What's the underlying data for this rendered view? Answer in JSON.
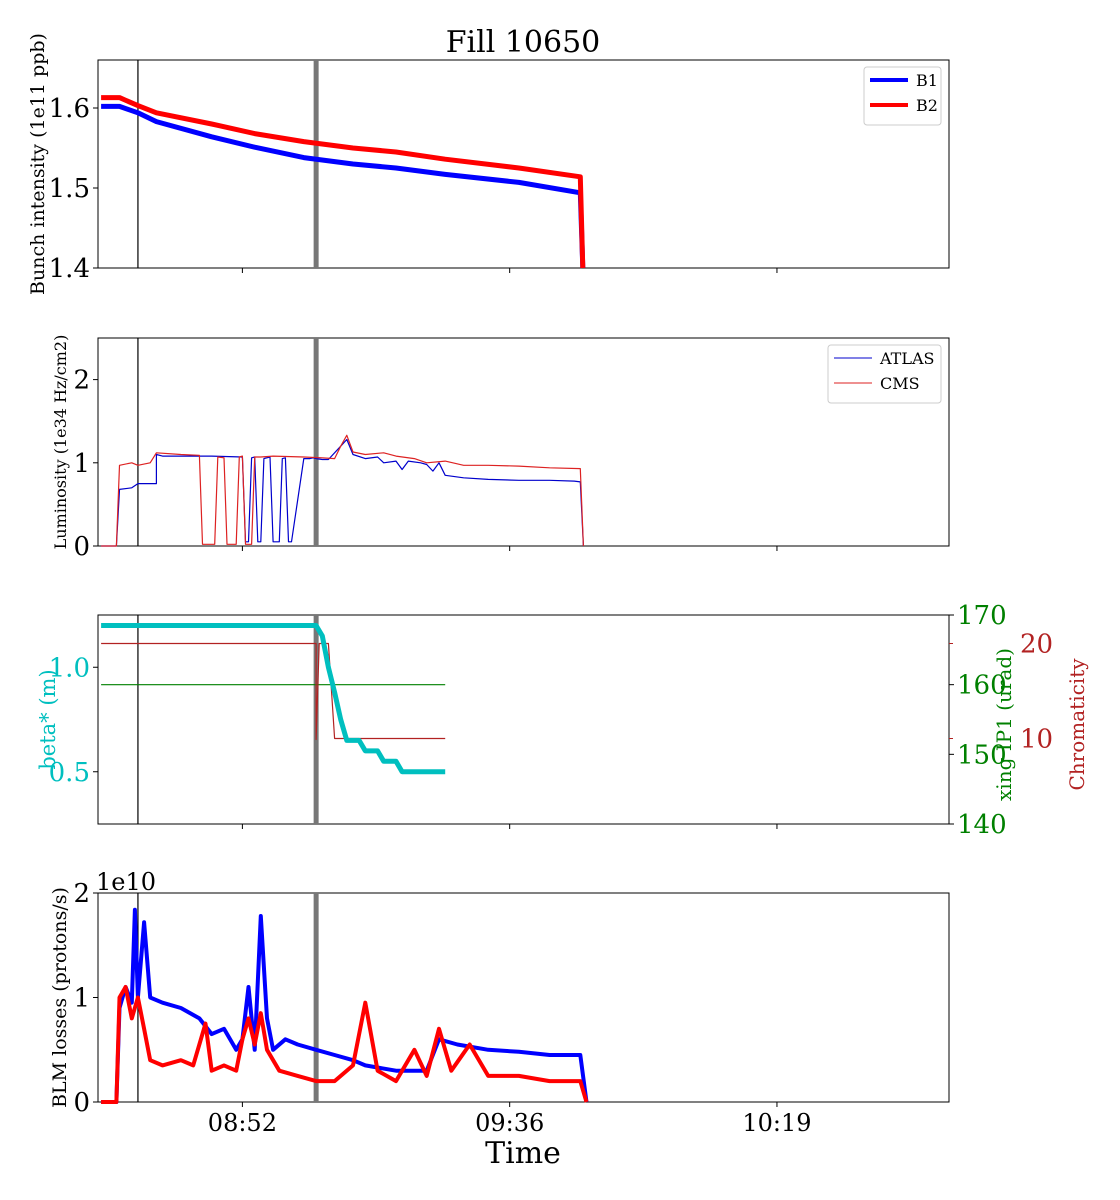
{
  "title": "Fill 10650",
  "xlabel": "Time",
  "x_ticks": [
    "08:52",
    "09:36",
    "10:19"
  ],
  "colors": {
    "b1": "#0000ff",
    "b2": "#ff0000",
    "atlas": "#0000cc",
    "cms": "#dd2222",
    "beta": "#00bfbf",
    "xing": "#008000",
    "chroma": "#b22222",
    "marker": "#777777"
  },
  "chart_data": [
    {
      "type": "line",
      "ylabel": "Bunch intensity (1e11 ppb)",
      "ylim": [
        1.4,
        1.66
      ],
      "yticks": [
        "1.4",
        "1.5",
        "1.6"
      ],
      "legend": {
        "position": "top-right"
      },
      "x_unit": "minutes after 08:52",
      "series": [
        {
          "name": "B1",
          "points": [
            [
              -23,
              1.602
            ],
            [
              -20,
              1.602
            ],
            [
              -17,
              1.594
            ],
            [
              -14,
              1.583
            ],
            [
              -5,
              1.564
            ],
            [
              2,
              1.551
            ],
            [
              10,
              1.538
            ],
            [
              18,
              1.53
            ],
            [
              25,
              1.525
            ],
            [
              33,
              1.517
            ],
            [
              45,
              1.507
            ],
            [
              55,
              1.494
            ],
            [
              55.4,
              1.4
            ]
          ]
        },
        {
          "name": "B2",
          "points": [
            [
              -23,
              1.613
            ],
            [
              -20,
              1.613
            ],
            [
              -17,
              1.603
            ],
            [
              -14,
              1.594
            ],
            [
              -5,
              1.58
            ],
            [
              2,
              1.568
            ],
            [
              10,
              1.558
            ],
            [
              18,
              1.55
            ],
            [
              25,
              1.545
            ],
            [
              33,
              1.536
            ],
            [
              45,
              1.525
            ],
            [
              55,
              1.514
            ],
            [
              55.4,
              1.4
            ]
          ]
        }
      ]
    },
    {
      "type": "line",
      "ylabel": "Luminosity (1e34 Hz/cm2)",
      "ylim": [
        0,
        2.5
      ],
      "yticks": [
        "0",
        "1",
        "2"
      ],
      "legend": {
        "position": "top-right"
      },
      "series": [
        {
          "name": "ATLAS",
          "points": [
            [
              -23,
              0
            ],
            [
              -20.5,
              0
            ],
            [
              -20,
              0.68
            ],
            [
              -18,
              0.7
            ],
            [
              -17,
              0.75
            ],
            [
              -14,
              0.75
            ],
            [
              -14,
              1.1
            ],
            [
              -13,
              1.08
            ],
            [
              -5,
              1.08
            ],
            [
              0,
              1.07
            ],
            [
              0.5,
              0.05
            ],
            [
              1,
              0.05
            ],
            [
              1.5,
              1.06
            ],
            [
              2,
              1.07
            ],
            [
              2.5,
              0.05
            ],
            [
              3,
              0.05
            ],
            [
              3.5,
              1.05
            ],
            [
              4.5,
              1.07
            ],
            [
              5,
              0.05
            ],
            [
              6,
              0.05
            ],
            [
              6.5,
              1.05
            ],
            [
              7,
              1.06
            ],
            [
              7.5,
              0.05
            ],
            [
              8,
              0.05
            ],
            [
              10,
              1.05
            ],
            [
              11,
              1.05
            ],
            [
              11.5,
              1.06
            ],
            [
              12,
              1.05
            ],
            [
              13,
              1.04
            ],
            [
              14,
              1.04
            ],
            [
              16,
              1.2
            ],
            [
              17,
              1.28
            ],
            [
              18,
              1.1
            ],
            [
              20,
              1.05
            ],
            [
              22,
              1.07
            ],
            [
              23,
              1.0
            ],
            [
              25,
              1.02
            ],
            [
              26,
              0.92
            ],
            [
              27,
              1.02
            ],
            [
              29,
              1.0
            ],
            [
              30,
              0.98
            ],
            [
              31,
              0.9
            ],
            [
              32,
              1.0
            ],
            [
              33,
              0.85
            ],
            [
              36,
              0.82
            ],
            [
              40,
              0.8
            ],
            [
              45,
              0.79
            ],
            [
              50,
              0.79
            ],
            [
              54,
              0.78
            ],
            [
              55,
              0.77
            ],
            [
              55.5,
              0
            ]
          ]
        },
        {
          "name": "CMS",
          "points": [
            [
              -23,
              0
            ],
            [
              -20.5,
              0
            ],
            [
              -20,
              0.97
            ],
            [
              -18,
              1.0
            ],
            [
              -17,
              0.97
            ],
            [
              -15,
              1.0
            ],
            [
              -14,
              1.12
            ],
            [
              -10,
              1.1
            ],
            [
              -7,
              1.09
            ],
            [
              -6.5,
              0.02
            ],
            [
              -4.5,
              0.02
            ],
            [
              -4,
              1.07
            ],
            [
              -3,
              1.06
            ],
            [
              -2.5,
              0.02
            ],
            [
              -1,
              0.02
            ],
            [
              -0.5,
              1.07
            ],
            [
              0,
              1.08
            ],
            [
              0.5,
              0.02
            ],
            [
              1.5,
              0.02
            ],
            [
              2,
              1.07
            ],
            [
              3,
              1.07
            ],
            [
              5,
              1.08
            ],
            [
              10,
              1.07
            ],
            [
              13,
              1.06
            ],
            [
              15,
              1.05
            ],
            [
              16,
              1.2
            ],
            [
              17,
              1.33
            ],
            [
              18,
              1.13
            ],
            [
              20,
              1.1
            ],
            [
              23,
              1.12
            ],
            [
              25,
              1.08
            ],
            [
              28,
              1.05
            ],
            [
              30,
              1.0
            ],
            [
              33,
              1.02
            ],
            [
              36,
              0.97
            ],
            [
              40,
              0.97
            ],
            [
              45,
              0.96
            ],
            [
              50,
              0.94
            ],
            [
              55,
              0.93
            ],
            [
              55.5,
              0
            ]
          ]
        }
      ]
    },
    {
      "type": "line",
      "ylabel": "beta* (m)",
      "ylim": [
        0.25,
        1.25
      ],
      "yticks": [
        "0.5",
        "1.0"
      ],
      "right_axes": [
        {
          "ylabel": "xing IP1 (urad)",
          "ylim": [
            140,
            170
          ],
          "yticks": [
            "140",
            "150",
            "160",
            "170"
          ]
        },
        {
          "ylabel": "Chromaticity",
          "yticks": [
            "10",
            "20"
          ]
        }
      ],
      "series": [
        {
          "name": "beta*",
          "axis": "beta",
          "points": [
            [
              -23,
              1.2
            ],
            [
              12,
              1.2
            ],
            [
              13,
              1.15
            ],
            [
              14,
              1.0
            ],
            [
              15,
              0.88
            ],
            [
              16,
              0.75
            ],
            [
              17,
              0.65
            ],
            [
              19,
              0.65
            ],
            [
              20,
              0.6
            ],
            [
              22,
              0.6
            ],
            [
              23,
              0.55
            ],
            [
              25,
              0.55
            ],
            [
              26,
              0.5
            ],
            [
              33,
              0.5
            ]
          ]
        },
        {
          "name": "xing IP1",
          "axis": "xing",
          "points": [
            [
              -23,
              160
            ],
            [
              33,
              160
            ]
          ]
        },
        {
          "name": "Chromaticity",
          "axis": "chroma",
          "points": [
            [
              -23,
              20
            ],
            [
              12,
              20
            ],
            [
              12,
              9.9
            ],
            [
              12.5,
              20
            ],
            [
              13,
              20
            ],
            [
              14,
              20
            ],
            [
              15,
              10
            ],
            [
              33,
              10
            ]
          ]
        }
      ]
    },
    {
      "type": "line",
      "ylabel": "BLM losses (protons/s)",
      "ylim": [
        0,
        20000000000.0
      ],
      "yticks": [
        "0",
        "1"
      ],
      "scale_label": "1e10",
      "series": [
        {
          "name": "B1",
          "points": [
            [
              -23,
              0
            ],
            [
              -20.5,
              0
            ],
            [
              -20,
              9000000000.0
            ],
            [
              -19,
              11000000000.0
            ],
            [
              -18,
              9500000000.0
            ],
            [
              -17.5,
              18400000000.0
            ],
            [
              -17,
              10000000000.0
            ],
            [
              -16,
              17200000000.0
            ],
            [
              -15,
              10000000000.0
            ],
            [
              -13,
              9500000000.0
            ],
            [
              -10,
              9000000000.0
            ],
            [
              -7,
              8000000000.0
            ],
            [
              -5,
              6500000000.0
            ],
            [
              -3,
              7000000000.0
            ],
            [
              -1,
              5000000000.0
            ],
            [
              0,
              6000000000.0
            ],
            [
              1,
              11000000000.0
            ],
            [
              2,
              5000000000.0
            ],
            [
              3,
              17800000000.0
            ],
            [
              4,
              8000000000.0
            ],
            [
              5,
              5000000000.0
            ],
            [
              7,
              6000000000.0
            ],
            [
              9,
              5500000000.0
            ],
            [
              12,
              5000000000.0
            ],
            [
              15,
              4500000000.0
            ],
            [
              18,
              4000000000.0
            ],
            [
              20,
              3500000000.0
            ],
            [
              25,
              3000000000.0
            ],
            [
              30,
              3000000000.0
            ],
            [
              32,
              6000000000.0
            ],
            [
              35,
              5500000000.0
            ],
            [
              40,
              5000000000.0
            ],
            [
              45,
              4800000000.0
            ],
            [
              50,
              4500000000.0
            ],
            [
              55,
              4500000000.0
            ],
            [
              56,
              0
            ]
          ]
        },
        {
          "name": "B2",
          "points": [
            [
              -23,
              0
            ],
            [
              -20.5,
              0
            ],
            [
              -20,
              10000000000.0
            ],
            [
              -19,
              11000000000.0
            ],
            [
              -18,
              8000000000.0
            ],
            [
              -17,
              10000000000.0
            ],
            [
              -16,
              7000000000.0
            ],
            [
              -15,
              4000000000.0
            ],
            [
              -13,
              3500000000.0
            ],
            [
              -10,
              4000000000.0
            ],
            [
              -8,
              3500000000.0
            ],
            [
              -6,
              7500000000.0
            ],
            [
              -5,
              3000000000.0
            ],
            [
              -3,
              3500000000.0
            ],
            [
              -1,
              3000000000.0
            ],
            [
              0,
              6000000000.0
            ],
            [
              1,
              8000000000.0
            ],
            [
              2,
              5500000000.0
            ],
            [
              3,
              8500000000.0
            ],
            [
              4,
              5000000000.0
            ],
            [
              6,
              3000000000.0
            ],
            [
              9,
              2500000000.0
            ],
            [
              12,
              2000000000.0
            ],
            [
              15,
              2000000000.0
            ],
            [
              18,
              3500000000.0
            ],
            [
              20,
              9500000000.0
            ],
            [
              22,
              3000000000.0
            ],
            [
              25,
              2000000000.0
            ],
            [
              28,
              5000000000.0
            ],
            [
              30,
              2500000000.0
            ],
            [
              32,
              7000000000.0
            ],
            [
              34,
              3000000000.0
            ],
            [
              37,
              5500000000.0
            ],
            [
              40,
              2500000000.0
            ],
            [
              45,
              2500000000.0
            ],
            [
              50,
              2000000000.0
            ],
            [
              55,
              2000000000.0
            ],
            [
              56,
              0
            ]
          ]
        }
      ]
    }
  ]
}
